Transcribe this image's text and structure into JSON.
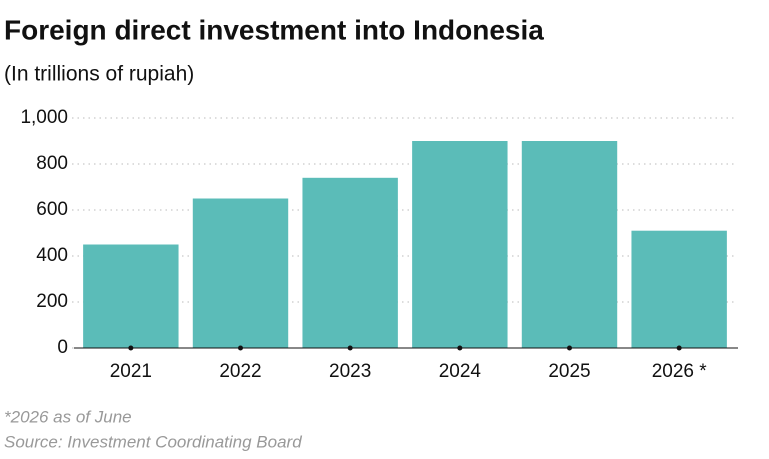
{
  "chart_data": {
    "type": "bar",
    "title": "Foreign direct investment into Indonesia",
    "subtitle": "(In trillions of rupiah)",
    "categories": [
      "2021",
      "2022",
      "2023",
      "2024",
      "2025",
      "2026 *"
    ],
    "values": [
      450,
      650,
      740,
      900,
      900,
      510
    ],
    "color": "#5bbcb8",
    "ylim": [
      0,
      1000
    ],
    "yticks": [
      0,
      200,
      400,
      600,
      800,
      {
        "value": 1000,
        "label": "1,000"
      }
    ],
    "grid": true,
    "footnote": "*2026 as of June",
    "source": "Source: Investment Coordinating Board"
  }
}
